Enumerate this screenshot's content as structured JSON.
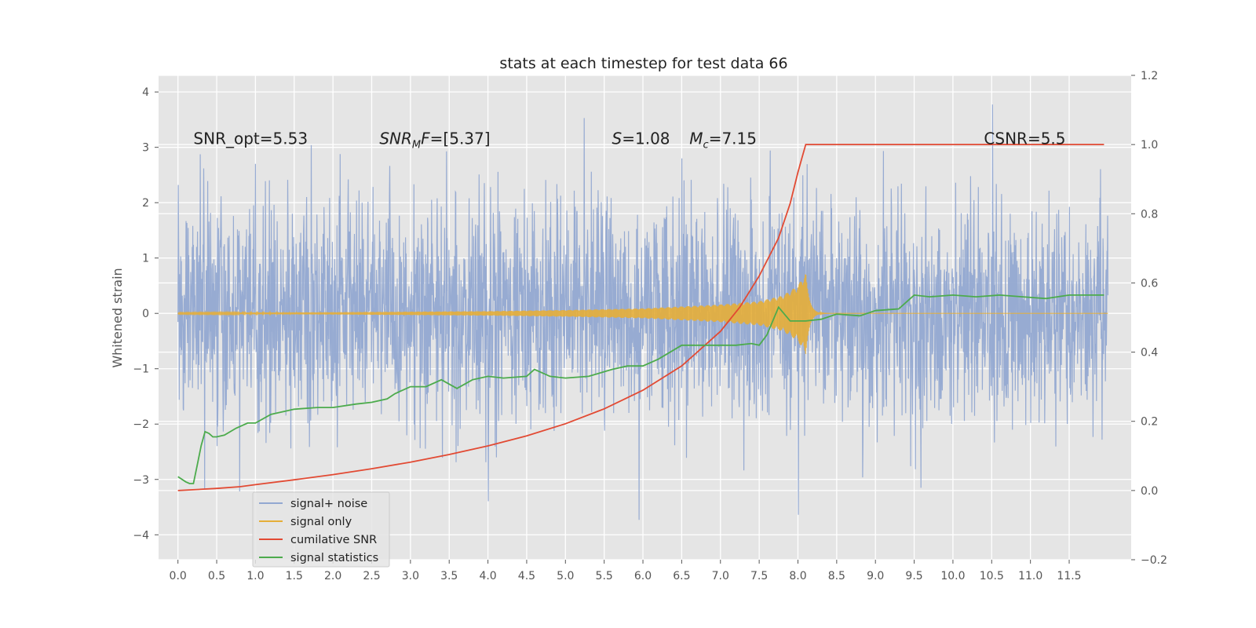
{
  "chart_data": {
    "type": "line",
    "title": "stats at each timestep for test data 66",
    "ylabel": "Whitened strain",
    "y2label": "",
    "xlim": [
      -0.25,
      12.3
    ],
    "ylim": [
      -4.45,
      4.3
    ],
    "y2lim": [
      -0.2,
      1.2
    ],
    "x_ticks": [
      0.0,
      0.5,
      1.0,
      1.5,
      2.0,
      2.5,
      3.0,
      3.5,
      4.0,
      4.5,
      5.0,
      5.5,
      6.0,
      6.5,
      7.0,
      7.5,
      8.0,
      8.5,
      9.0,
      9.5,
      10.0,
      10.5,
      11.0,
      11.5
    ],
    "x_tick_labels": [
      "0.0",
      "0.5",
      "1.0",
      "1.5",
      "2.0",
      "2.5",
      "3.0",
      "3.5",
      "4.0",
      "4.5",
      "5.0",
      "5.5",
      "6.0",
      "6.5",
      "7.0",
      "7.5",
      "8.0",
      "8.5",
      "9.0",
      "9.5",
      "10.0",
      "10.5",
      "11.0",
      "11.5"
    ],
    "y_ticks": [
      -4,
      -3,
      -2,
      -1,
      0,
      1,
      2,
      3,
      4
    ],
    "y_tick_labels": [
      "−4",
      "−3",
      "−2",
      "−1",
      "0",
      "1",
      "2",
      "3",
      "4"
    ],
    "y2_ticks": [
      -0.2,
      0.0,
      0.2,
      0.4,
      0.6,
      0.8,
      1.0,
      1.2
    ],
    "y2_tick_labels": [
      "−0.2",
      "0.0",
      "0.2",
      "0.4",
      "0.6",
      "0.8",
      "1.0",
      "1.2"
    ],
    "grid": true,
    "legend_position": "bottom-left",
    "annotations": [
      {
        "parts": [
          {
            "text": "SNR_opt=5.53",
            "italic": false
          }
        ],
        "x": 0.2,
        "y": 3.06
      },
      {
        "parts": [
          {
            "text": "SNR",
            "italic": true
          },
          {
            "text": "M",
            "italic": true,
            "sub": true
          },
          {
            "text": "F",
            "italic": true
          },
          {
            "text": "=[5.37]",
            "italic": false
          }
        ],
        "x": 2.6,
        "y": 3.06
      },
      {
        "parts": [
          {
            "text": "S",
            "italic": true
          },
          {
            "text": "=1.08",
            "italic": false
          }
        ],
        "x": 5.6,
        "y": 3.06
      },
      {
        "parts": [
          {
            "text": "M",
            "italic": true
          },
          {
            "text": "c",
            "italic": true,
            "sub": true
          },
          {
            "text": "=7.15",
            "italic": false
          }
        ],
        "x": 6.6,
        "y": 3.06
      },
      {
        "parts": [
          {
            "text": "CSNR=5.5",
            "italic": false
          }
        ],
        "x": 10.4,
        "y": 3.06
      }
    ],
    "series": [
      {
        "name": "signal+ noise",
        "axis": "left",
        "color": "#92a8d1",
        "kind": "noise",
        "x_range": [
          0.0,
          12.0
        ],
        "typical_range": [
          -2.0,
          2.0
        ],
        "extremes": [
          -3.9,
          3.88
        ]
      },
      {
        "name": "signal only",
        "axis": "left",
        "color": "#e5ae38",
        "kind": "chirp",
        "x_range": [
          0.0,
          12.0
        ],
        "merger_x": 8.1,
        "envelope": [
          [
            0.0,
            0.01
          ],
          [
            2.0,
            0.02
          ],
          [
            4.0,
            0.04
          ],
          [
            5.0,
            0.06
          ],
          [
            6.0,
            0.09
          ],
          [
            7.0,
            0.16
          ],
          [
            7.5,
            0.22
          ],
          [
            7.8,
            0.32
          ],
          [
            8.0,
            0.5
          ],
          [
            8.1,
            0.75
          ]
        ]
      },
      {
        "name": "cumilative SNR",
        "axis": "right",
        "color": "#e24a33",
        "x": [
          0.0,
          0.5,
          0.8,
          1.0,
          1.5,
          2.0,
          2.5,
          3.0,
          3.5,
          4.0,
          4.5,
          5.0,
          5.5,
          6.0,
          6.5,
          7.0,
          7.25,
          7.5,
          7.75,
          7.9,
          8.0,
          8.05,
          8.1,
          11.95
        ],
        "values": [
          0.0,
          0.006,
          0.011,
          0.017,
          0.031,
          0.046,
          0.063,
          0.082,
          0.104,
          0.129,
          0.158,
          0.193,
          0.236,
          0.29,
          0.36,
          0.46,
          0.53,
          0.62,
          0.73,
          0.83,
          0.92,
          0.96,
          1.0,
          1.0
        ]
      },
      {
        "name": "signal statistics",
        "axis": "right",
        "color": "#4cab4c",
        "x": [
          0.0,
          0.1,
          0.15,
          0.2,
          0.25,
          0.3,
          0.35,
          0.4,
          0.45,
          0.5,
          0.6,
          0.75,
          0.9,
          1.0,
          1.2,
          1.5,
          1.8,
          2.0,
          2.3,
          2.5,
          2.7,
          2.8,
          3.0,
          3.2,
          3.4,
          3.6,
          3.8,
          4.0,
          4.2,
          4.5,
          4.6,
          4.8,
          5.0,
          5.3,
          5.6,
          5.8,
          6.0,
          6.2,
          6.5,
          6.7,
          6.9,
          7.2,
          7.4,
          7.5,
          7.6,
          7.75,
          7.9,
          8.0,
          8.1,
          8.3,
          8.5,
          8.8,
          9.0,
          9.3,
          9.5,
          9.7,
          10.0,
          10.3,
          10.6,
          10.9,
          11.2,
          11.5,
          11.95
        ],
        "values": [
          0.04,
          0.025,
          0.02,
          0.02,
          0.075,
          0.13,
          0.17,
          0.165,
          0.155,
          0.155,
          0.16,
          0.18,
          0.195,
          0.195,
          0.22,
          0.235,
          0.24,
          0.24,
          0.25,
          0.255,
          0.265,
          0.28,
          0.3,
          0.3,
          0.32,
          0.295,
          0.32,
          0.33,
          0.325,
          0.33,
          0.35,
          0.33,
          0.325,
          0.33,
          0.35,
          0.36,
          0.36,
          0.38,
          0.42,
          0.42,
          0.42,
          0.42,
          0.425,
          0.42,
          0.45,
          0.53,
          0.49,
          0.49,
          0.49,
          0.495,
          0.51,
          0.505,
          0.52,
          0.525,
          0.565,
          0.56,
          0.565,
          0.56,
          0.565,
          0.56,
          0.555,
          0.565,
          0.565
        ]
      }
    ]
  }
}
